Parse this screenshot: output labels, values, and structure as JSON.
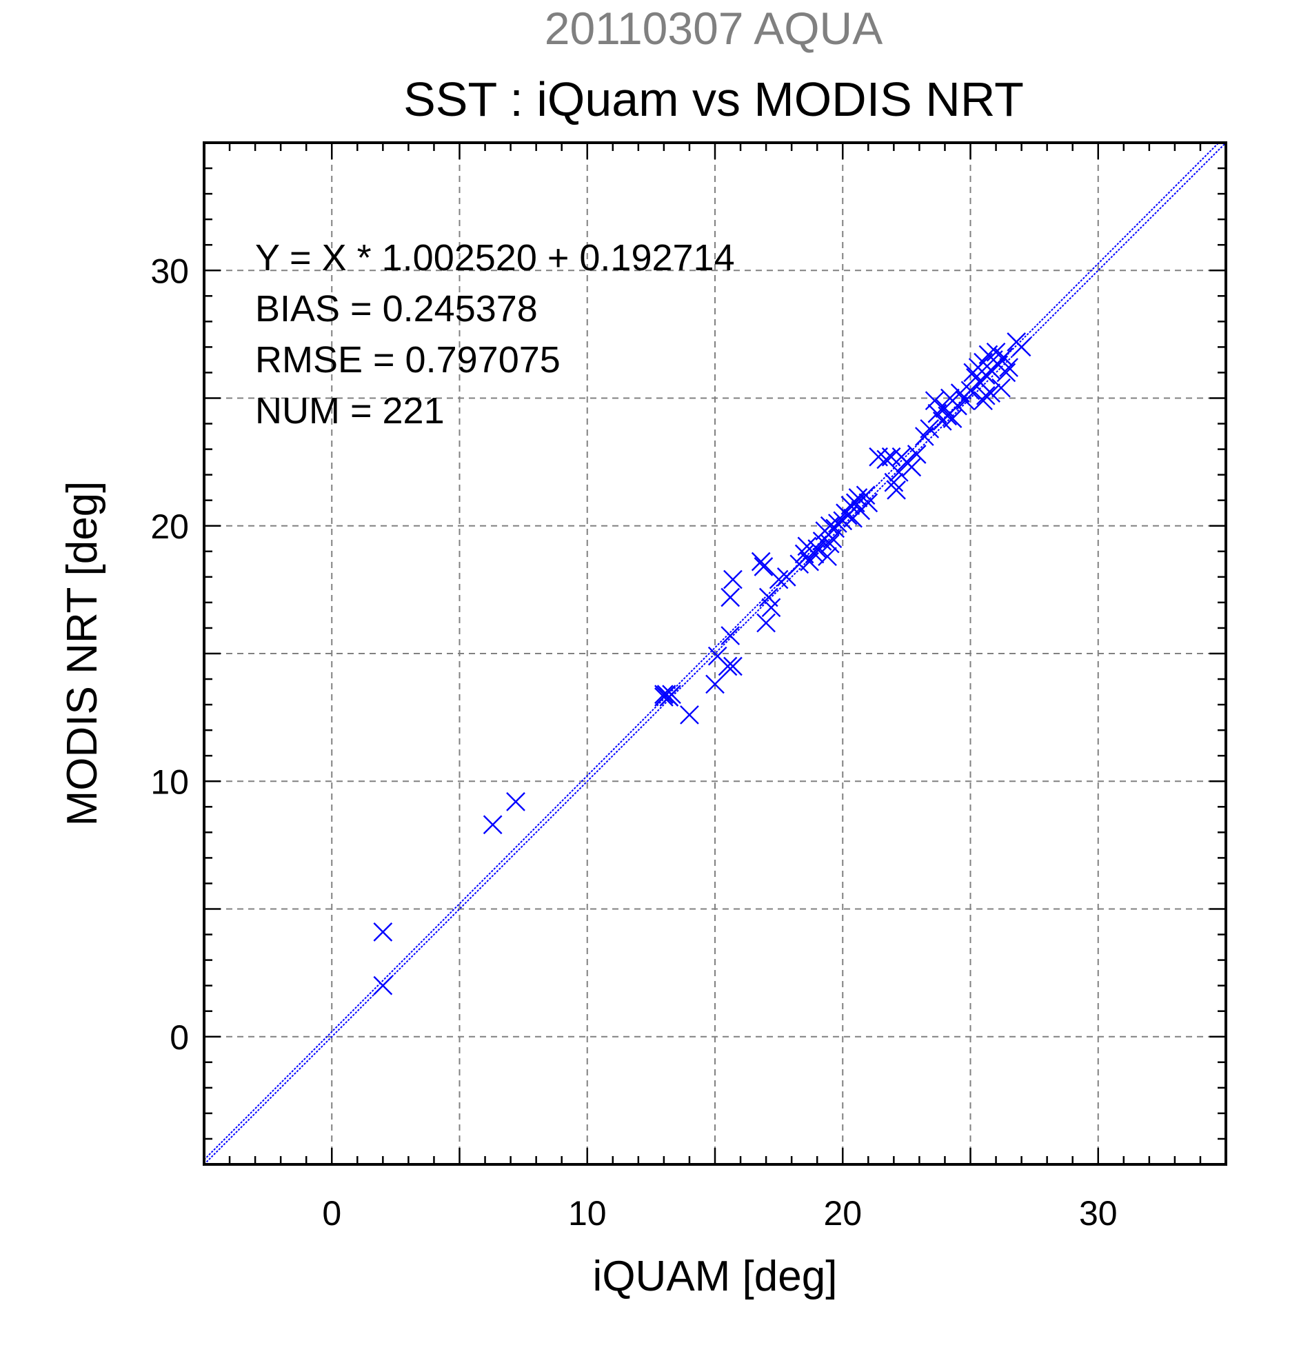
{
  "header": {
    "date_label": "20110307 AQUA",
    "title": "SST : iQuam vs MODIS NRT"
  },
  "stats": {
    "line1": "Y = X * 1.002520 + 0.192714",
    "line2": "BIAS = 0.245378",
    "line3": "RMSE = 0.797075",
    "line4": "NUM = 221"
  },
  "chart_data": {
    "type": "scatter",
    "title": "SST : iQuam vs MODIS NRT",
    "subtitle": "20110307 AQUA",
    "xlabel": "iQUAM [deg]",
    "ylabel": "MODIS NRT [deg]",
    "xlim": [
      -5,
      35
    ],
    "ylim": [
      -5,
      35
    ],
    "xticks": [
      0,
      10,
      20,
      30
    ],
    "yticks": [
      0,
      10,
      20,
      30
    ],
    "grid": true,
    "marker": "x",
    "marker_color": "#0000ff",
    "fit": {
      "slope": 1.00252,
      "intercept": 0.192714
    },
    "stats": {
      "bias": 0.245378,
      "rmse": 0.797075,
      "num": 221
    },
    "x": [
      2.0,
      2.0,
      6.3,
      7.2,
      13.0,
      13.1,
      13.2,
      13.3,
      13.0,
      13.2,
      14.0,
      15.0,
      15.1,
      15.5,
      15.6,
      15.7,
      15.6,
      15.7,
      16.8,
      16.9,
      17.0,
      17.1,
      17.2,
      17.5,
      17.8,
      18.3,
      18.5,
      18.6,
      18.7,
      18.9,
      19.0,
      19.2,
      19.3,
      19.4,
      19.5,
      19.5,
      19.6,
      19.7,
      19.8,
      20.0,
      20.1,
      20.2,
      20.3,
      20.4,
      20.5,
      20.6,
      20.7,
      20.9,
      21.0,
      21.4,
      21.7,
      21.9,
      22.0,
      22.1,
      22.2,
      22.3,
      22.5,
      22.7,
      22.9,
      23.2,
      23.4,
      23.6,
      23.7,
      23.9,
      24.0,
      24.1,
      24.2,
      24.3,
      24.5,
      24.6,
      24.8,
      25.0,
      25.1,
      25.2,
      25.3,
      25.4,
      25.5,
      25.6,
      25.6,
      25.7,
      25.8,
      25.9,
      26.0,
      26.1,
      26.2,
      26.3,
      26.4,
      26.5,
      26.8,
      27.0,
      25.5,
      25.8
    ],
    "y": [
      2.0,
      4.1,
      8.3,
      9.2,
      13.3,
      13.4,
      13.3,
      13.4,
      13.4,
      13.3,
      12.6,
      13.8,
      14.9,
      14.5,
      15.7,
      17.9,
      17.2,
      14.5,
      18.6,
      18.4,
      16.2,
      17.2,
      16.8,
      17.9,
      18.0,
      18.5,
      18.9,
      19.2,
      18.6,
      18.9,
      19.1,
      19.4,
      19.8,
      18.8,
      19.3,
      20.0,
      19.5,
      19.9,
      20.1,
      20.2,
      20.5,
      20.4,
      20.8,
      20.3,
      20.9,
      21.1,
      20.6,
      21.2,
      20.9,
      22.7,
      22.6,
      22.7,
      21.7,
      21.4,
      22.1,
      22.7,
      22.5,
      22.3,
      22.8,
      23.5,
      23.8,
      24.9,
      24.4,
      24.1,
      24.6,
      24.3,
      25.0,
      24.2,
      24.7,
      25.2,
      24.9,
      25.3,
      26.0,
      25.8,
      26.2,
      25.6,
      26.4,
      25.1,
      25.9,
      26.7,
      26.1,
      26.5,
      26.8,
      26.3,
      25.4,
      26.6,
      26.0,
      26.2,
      27.2,
      27.0,
      24.9,
      25.2
    ]
  }
}
